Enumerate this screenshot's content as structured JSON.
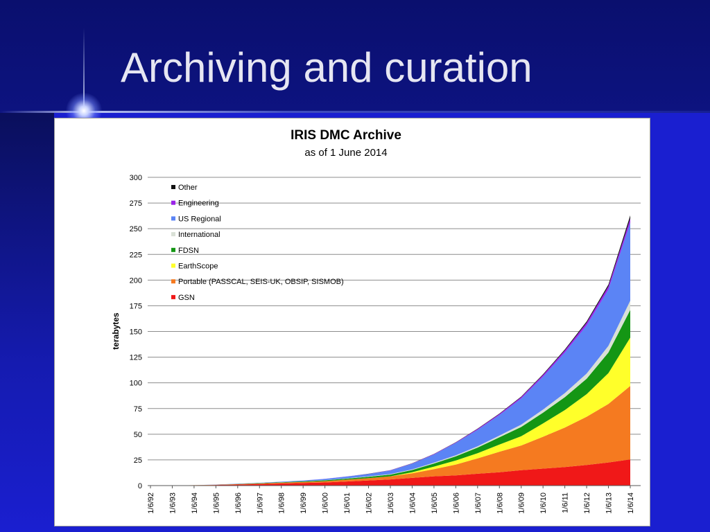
{
  "slide": {
    "title": "Archiving and curation"
  },
  "colors": {
    "background": "#1a1fd0",
    "Other": "#111111",
    "Engineering": "#9a22e8",
    "US Regional": "#5b84f5",
    "International": "#d9e0d6",
    "FDSN": "#149614",
    "EarthScope": "#ffff2a",
    "Portable (PASSCAL, SEIS-UK, OBSIP, SISMOB)": "#f57a20",
    "GSN": "#f01818"
  },
  "chart_data": {
    "type": "area",
    "stacked": true,
    "title": "IRIS DMC Archive",
    "subtitle": "as of 1 June 2014",
    "xlabel": "",
    "ylabel": "terabytes",
    "ylim": [
      0,
      300
    ],
    "yticks": [
      0,
      25,
      50,
      75,
      100,
      125,
      150,
      175,
      200,
      225,
      250,
      275,
      300
    ],
    "xticks": [
      "1/6/92",
      "1/6/93",
      "1/6/94",
      "1/6/95",
      "1/6/96",
      "1/6/97",
      "1/6/98",
      "1/6/99",
      "1/6/00",
      "1/6/01",
      "1/6/02",
      "1/6/03",
      "1/6/04",
      "1/6/05",
      "1/6/06",
      "1/6/07",
      "1/6/08",
      "1/6/09",
      "1/6/10",
      "1/6/11",
      "1/6/12",
      "1/6/13",
      "1/6/14"
    ],
    "grid": true,
    "legend_position": "top-left",
    "x": [
      "1992-06",
      "1993-06",
      "1994-06",
      "1995-06",
      "1996-06",
      "1997-06",
      "1998-06",
      "1999-06",
      "2000-06",
      "2001-06",
      "2002-06",
      "2003-06",
      "2004-06",
      "2005-06",
      "2006-06",
      "2007-06",
      "2008-06",
      "2009-06",
      "2010-06",
      "2011-06",
      "2012-06",
      "2013-06",
      "2014-06"
    ],
    "series": [
      {
        "name": "GSN",
        "values": [
          0,
          0.1,
          0.3,
          0.6,
          1,
          1.5,
          2,
          2.5,
          3,
          4,
          5,
          6,
          7.5,
          9,
          10,
          11.5,
          13,
          15,
          16.5,
          18,
          20,
          22.5,
          25.5
        ]
      },
      {
        "name": "Portable (PASSCAL, SEIS-UK, OBSIP, SISMOB)",
        "values": [
          0,
          0,
          0.1,
          0.2,
          0.4,
          0.6,
          0.8,
          1,
          1.3,
          1.8,
          2.3,
          3,
          4.5,
          7,
          10.5,
          15,
          20,
          24,
          31,
          38.5,
          47,
          57,
          71.5
        ]
      },
      {
        "name": "EarthScope",
        "values": [
          0,
          0,
          0,
          0,
          0,
          0,
          0,
          0,
          0,
          0,
          0,
          0,
          1,
          2.5,
          4,
          5,
          7,
          9,
          13,
          17,
          22,
          30,
          47
        ]
      },
      {
        "name": "FDSN",
        "values": [
          0,
          0,
          0,
          0.1,
          0.2,
          0.3,
          0.4,
          0.6,
          0.8,
          1,
          1.3,
          1.7,
          2.2,
          3,
          4,
          5.5,
          7,
          9,
          10.5,
          12.5,
          15,
          20,
          27
        ]
      },
      {
        "name": "International",
        "values": [
          0,
          0,
          0,
          0,
          0,
          0,
          0.1,
          0.1,
          0.2,
          0.3,
          0.4,
          0.5,
          0.6,
          0.8,
          1,
          1.3,
          1.7,
          2.3,
          3,
          4,
          5,
          6.5,
          9
        ]
      },
      {
        "name": "US Regional",
        "values": [
          0,
          0,
          0,
          0.1,
          0.2,
          0.3,
          0.5,
          0.8,
          1.2,
          1.7,
          2.3,
          3.5,
          5.5,
          8,
          12,
          16,
          20,
          25.5,
          32,
          39.5,
          47,
          55,
          76
        ]
      },
      {
        "name": "Engineering",
        "values": [
          0,
          0,
          0,
          0,
          0,
          0,
          0,
          0,
          0.1,
          0.1,
          0.1,
          0.2,
          0.3,
          0.4,
          0.5,
          0.8,
          1,
          1.3,
          1.7,
          2,
          2.5,
          3,
          4
        ]
      },
      {
        "name": "Other",
        "values": [
          0,
          0,
          0,
          0,
          0,
          0,
          0,
          0,
          0,
          0,
          0.1,
          0.1,
          0.1,
          0.2,
          0.2,
          0.3,
          0.4,
          0.5,
          0.7,
          1,
          1.3,
          1.7,
          3
        ]
      }
    ],
    "legend": [
      "Other",
      "Engineering",
      "US Regional",
      "International",
      "FDSN",
      "EarthScope",
      "Portable (PASSCAL, SEIS-UK, OBSIP, SISMOB)",
      "GSN"
    ]
  }
}
